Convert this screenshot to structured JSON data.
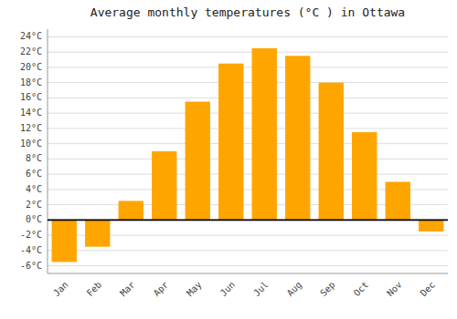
{
  "chart_data": {
    "type": "bar",
    "title": "Average monthly temperatures (°C ) in Ottawa",
    "categories": [
      "Jan",
      "Feb",
      "Mar",
      "Apr",
      "May",
      "Jun",
      "Jul",
      "Aug",
      "Sep",
      "Oct",
      "Nov",
      "Dec"
    ],
    "values": [
      -5.5,
      -3.5,
      2.5,
      9.0,
      15.5,
      20.5,
      22.5,
      21.5,
      18.0,
      11.5,
      5.0,
      -1.5
    ],
    "color": "#FFA500",
    "ylim": [
      -7,
      25
    ],
    "yticks": [
      {
        "value": -6,
        "label": "-6°C"
      },
      {
        "value": -4,
        "label": "-4°C"
      },
      {
        "value": -2,
        "label": "-2°C"
      },
      {
        "value": 0,
        "label": "0°C"
      },
      {
        "value": 2,
        "label": "2°C"
      },
      {
        "value": 4,
        "label": "4°C"
      },
      {
        "value": 6,
        "label": "6°C"
      },
      {
        "value": 8,
        "label": "8°C"
      },
      {
        "value": 10,
        "label": "10°C"
      },
      {
        "value": 12,
        "label": "12°C"
      },
      {
        "value": 14,
        "label": "14°C"
      },
      {
        "value": 16,
        "label": "16°C"
      },
      {
        "value": 18,
        "label": "18°C"
      },
      {
        "value": 20,
        "label": "20°C"
      },
      {
        "value": 22,
        "label": "22°C"
      },
      {
        "value": 24,
        "label": "24°C"
      }
    ],
    "grid": true
  }
}
